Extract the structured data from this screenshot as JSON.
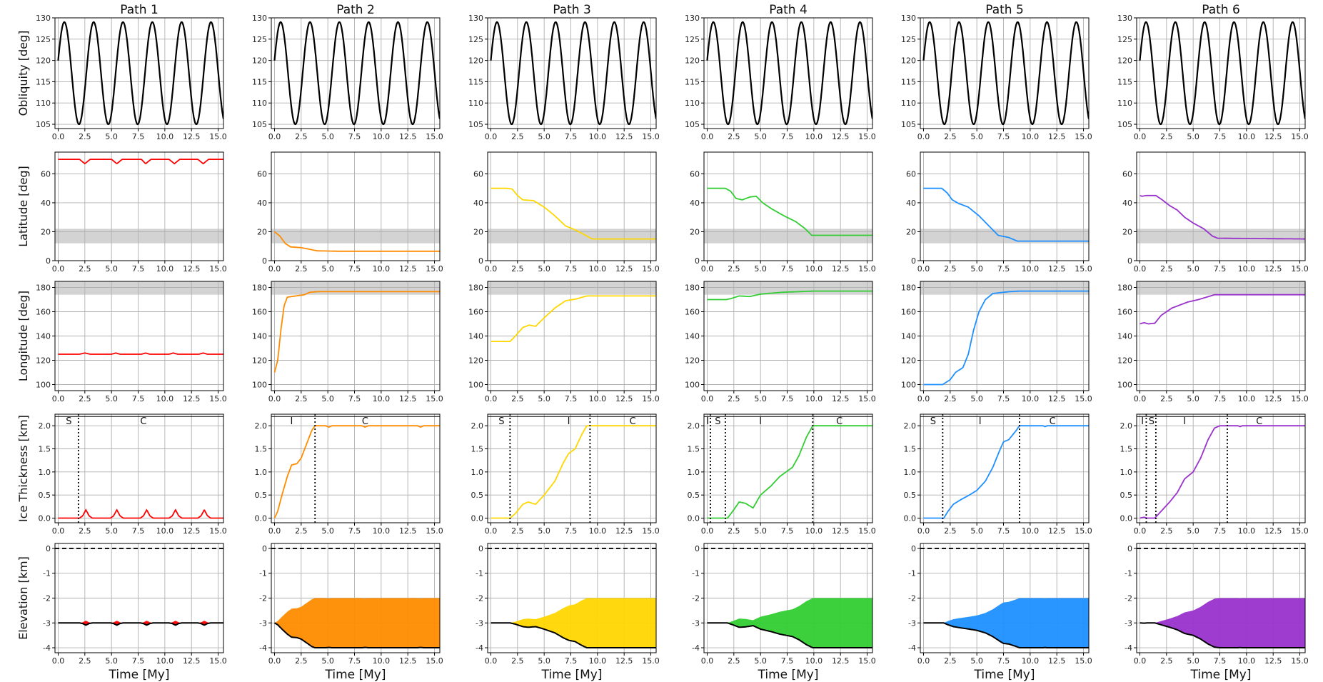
{
  "chart_data": {
    "type": "line",
    "title": "",
    "paths": [
      {
        "name": "Path 1",
        "color": "#ff0000",
        "fill": "#ff0000",
        "lat": [
          [
            0,
            70
          ],
          [
            1.5,
            70
          ],
          [
            2,
            70
          ],
          [
            2.5,
            67
          ],
          [
            3,
            70
          ],
          [
            5,
            70
          ],
          [
            5.5,
            67
          ],
          [
            6,
            70
          ],
          [
            7.8,
            70
          ],
          [
            8.2,
            67
          ],
          [
            8.7,
            70
          ],
          [
            10.4,
            70
          ],
          [
            10.9,
            67
          ],
          [
            11.4,
            70
          ],
          [
            13.1,
            70
          ],
          [
            13.6,
            67
          ],
          [
            14.1,
            70
          ],
          [
            15.5,
            70
          ]
        ],
        "lon": [
          [
            0,
            125
          ],
          [
            2,
            125
          ],
          [
            2.5,
            126
          ],
          [
            3,
            125
          ],
          [
            5,
            125
          ],
          [
            5.4,
            126
          ],
          [
            5.8,
            125
          ],
          [
            7.8,
            125
          ],
          [
            8.2,
            126
          ],
          [
            8.6,
            125
          ],
          [
            10.4,
            125
          ],
          [
            10.8,
            126
          ],
          [
            11.2,
            125
          ],
          [
            13.2,
            125
          ],
          [
            13.6,
            126
          ],
          [
            14,
            125
          ],
          [
            15.5,
            125
          ]
        ],
        "ice": [
          [
            0,
            0
          ],
          [
            2,
            0
          ],
          [
            2.3,
            0.05
          ],
          [
            2.6,
            0.18
          ],
          [
            2.9,
            0.05
          ],
          [
            3.2,
            0
          ],
          [
            4.9,
            0
          ],
          [
            5.2,
            0.05
          ],
          [
            5.5,
            0.18
          ],
          [
            5.8,
            0.05
          ],
          [
            6.1,
            0
          ],
          [
            7.7,
            0
          ],
          [
            8,
            0.05
          ],
          [
            8.3,
            0.18
          ],
          [
            8.6,
            0.05
          ],
          [
            8.9,
            0
          ],
          [
            10.4,
            0
          ],
          [
            10.7,
            0.05
          ],
          [
            11,
            0.18
          ],
          [
            11.3,
            0.05
          ],
          [
            11.6,
            0
          ],
          [
            13.1,
            0
          ],
          [
            13.4,
            0.05
          ],
          [
            13.7,
            0.18
          ],
          [
            14,
            0.05
          ],
          [
            14.3,
            0
          ],
          [
            15.5,
            0
          ]
        ],
        "phase_lines": [
          1.9
        ],
        "phase_labels": [
          {
            "t": "S",
            "x": 1.0
          },
          {
            "t": "C",
            "x": 8.0
          }
        ]
      },
      {
        "name": "Path 2",
        "color": "#ff8c00",
        "fill": "#ff8c00",
        "lat": [
          [
            0,
            20
          ],
          [
            0.5,
            17
          ],
          [
            1,
            12
          ],
          [
            1.5,
            9.5
          ],
          [
            2.5,
            9
          ],
          [
            3.2,
            8
          ],
          [
            4,
            6.8
          ],
          [
            6,
            6.5
          ],
          [
            15.5,
            6.5
          ]
        ],
        "lon": [
          [
            0,
            110
          ],
          [
            0.3,
            120
          ],
          [
            0.6,
            145
          ],
          [
            0.9,
            165
          ],
          [
            1.2,
            172
          ],
          [
            2,
            173
          ],
          [
            2.8,
            174
          ],
          [
            3.3,
            176
          ],
          [
            4,
            176.5
          ],
          [
            15.5,
            176.5
          ]
        ],
        "ice": [
          [
            0,
            0
          ],
          [
            0.3,
            0.15
          ],
          [
            0.7,
            0.5
          ],
          [
            1.2,
            0.9
          ],
          [
            1.6,
            1.15
          ],
          [
            2.1,
            1.18
          ],
          [
            2.5,
            1.3
          ],
          [
            3,
            1.6
          ],
          [
            3.5,
            1.9
          ],
          [
            3.8,
            2
          ],
          [
            4.8,
            2
          ],
          [
            5.1,
            1.97
          ],
          [
            5.4,
            2
          ],
          [
            8.2,
            2
          ],
          [
            8.5,
            1.97
          ],
          [
            8.8,
            2
          ],
          [
            13.4,
            2
          ],
          [
            13.7,
            1.97
          ],
          [
            14,
            2
          ],
          [
            15.5,
            2
          ]
        ],
        "phase_lines": [
          3.8
        ],
        "phase_labels": [
          {
            "t": "I",
            "x": 1.6
          },
          {
            "t": "C",
            "x": 8.5
          }
        ]
      },
      {
        "name": "Path 3",
        "color": "#ffd700",
        "fill": "#ffd700",
        "lat": [
          [
            0,
            50
          ],
          [
            1.5,
            50
          ],
          [
            2,
            49.5
          ],
          [
            2.5,
            45
          ],
          [
            3,
            42
          ],
          [
            4,
            41.5
          ],
          [
            5,
            37
          ],
          [
            6,
            31
          ],
          [
            7,
            24
          ],
          [
            8,
            21
          ],
          [
            9,
            17
          ],
          [
            9.5,
            15
          ],
          [
            15.5,
            15
          ]
        ],
        "lon": [
          [
            0,
            135.5
          ],
          [
            1.8,
            135.5
          ],
          [
            2.3,
            140
          ],
          [
            3,
            147
          ],
          [
            3.6,
            149
          ],
          [
            4.2,
            148
          ],
          [
            5,
            155
          ],
          [
            6,
            163
          ],
          [
            7,
            169
          ],
          [
            8,
            170.5
          ],
          [
            9,
            173
          ],
          [
            15.5,
            173
          ]
        ],
        "ice": [
          [
            0,
            0
          ],
          [
            1.8,
            0
          ],
          [
            2.3,
            0.1
          ],
          [
            3,
            0.3
          ],
          [
            3.5,
            0.35
          ],
          [
            4.2,
            0.3
          ],
          [
            5,
            0.5
          ],
          [
            6,
            0.8
          ],
          [
            6.8,
            1.2
          ],
          [
            7.3,
            1.4
          ],
          [
            7.9,
            1.5
          ],
          [
            8.5,
            1.8
          ],
          [
            9,
            2
          ],
          [
            15.5,
            2
          ]
        ],
        "phase_lines": [
          1.8,
          9.3
        ],
        "phase_labels": [
          {
            "t": "S",
            "x": 1.0
          },
          {
            "t": "I",
            "x": 7.3
          },
          {
            "t": "C",
            "x": 13.3
          }
        ]
      },
      {
        "name": "Path 4",
        "color": "#32cd32",
        "fill": "#32cd32",
        "lat": [
          [
            0,
            50
          ],
          [
            1.7,
            50
          ],
          [
            2.2,
            48
          ],
          [
            2.7,
            43
          ],
          [
            3.3,
            42
          ],
          [
            4,
            44
          ],
          [
            4.6,
            44.5
          ],
          [
            5.2,
            40
          ],
          [
            6,
            36
          ],
          [
            7.2,
            31
          ],
          [
            8.3,
            27
          ],
          [
            9.2,
            22
          ],
          [
            9.8,
            17.5
          ],
          [
            15.5,
            17.5
          ]
        ],
        "lon": [
          [
            0,
            170
          ],
          [
            1.8,
            170
          ],
          [
            2.3,
            171
          ],
          [
            3,
            173
          ],
          [
            4,
            172.5
          ],
          [
            5,
            174.5
          ],
          [
            7,
            176
          ],
          [
            10,
            177
          ],
          [
            15.5,
            177
          ]
        ],
        "ice": [
          [
            0,
            0
          ],
          [
            1.9,
            0
          ],
          [
            2.4,
            0.15
          ],
          [
            3,
            0.35
          ],
          [
            3.6,
            0.32
          ],
          [
            4.3,
            0.22
          ],
          [
            5,
            0.5
          ],
          [
            6,
            0.7
          ],
          [
            6.8,
            0.9
          ],
          [
            7.4,
            1
          ],
          [
            8,
            1.1
          ],
          [
            8.6,
            1.35
          ],
          [
            9.3,
            1.75
          ],
          [
            9.9,
            2
          ],
          [
            15.5,
            2
          ]
        ],
        "phase_lines": [
          0.3,
          1.7,
          9.9
        ],
        "phase_labels": [
          {
            "t": "I",
            "x": 0.05
          },
          {
            "t": "S",
            "x": 1.0
          },
          {
            "t": "I",
            "x": 5.0
          },
          {
            "t": "C",
            "x": 12.4
          }
        ]
      },
      {
        "name": "Path 5",
        "color": "#1e90ff",
        "fill": "#1e90ff",
        "lat": [
          [
            0,
            50
          ],
          [
            1.7,
            50
          ],
          [
            2.2,
            47
          ],
          [
            2.7,
            42
          ],
          [
            3.3,
            39.5
          ],
          [
            4.2,
            37
          ],
          [
            5.2,
            31
          ],
          [
            6,
            25
          ],
          [
            7,
            17.5
          ],
          [
            8,
            16
          ],
          [
            8.8,
            13.5
          ],
          [
            15.5,
            13.5
          ]
        ],
        "lon": [
          [
            0,
            100
          ],
          [
            1.8,
            100
          ],
          [
            2.5,
            104
          ],
          [
            3,
            110
          ],
          [
            3.7,
            114
          ],
          [
            4.2,
            125
          ],
          [
            4.7,
            145
          ],
          [
            5.2,
            160
          ],
          [
            5.8,
            170
          ],
          [
            6.5,
            175
          ],
          [
            8,
            176.5
          ],
          [
            9,
            177
          ],
          [
            15.5,
            177
          ]
        ],
        "ice": [
          [
            0,
            0
          ],
          [
            1.9,
            0
          ],
          [
            2.3,
            0.15
          ],
          [
            2.8,
            0.3
          ],
          [
            3.5,
            0.4
          ],
          [
            4.3,
            0.5
          ],
          [
            5,
            0.6
          ],
          [
            5.8,
            0.8
          ],
          [
            6.5,
            1.1
          ],
          [
            7.2,
            1.5
          ],
          [
            7.5,
            1.65
          ],
          [
            8,
            1.7
          ],
          [
            8.7,
            1.9
          ],
          [
            9,
            2
          ],
          [
            11.2,
            2
          ],
          [
            11.4,
            1.98
          ],
          [
            11.6,
            2
          ],
          [
            15.5,
            2
          ]
        ],
        "phase_lines": [
          1.8,
          9.0
        ],
        "phase_labels": [
          {
            "t": "S",
            "x": 0.9
          },
          {
            "t": "I",
            "x": 5.3
          },
          {
            "t": "C",
            "x": 12.1
          }
        ]
      },
      {
        "name": "Path 6",
        "color": "#9932cc",
        "fill": "#9932cc",
        "lat": [
          [
            0,
            45
          ],
          [
            0.2,
            44.5
          ],
          [
            0.6,
            45
          ],
          [
            1.5,
            45
          ],
          [
            2.1,
            42
          ],
          [
            2.8,
            38
          ],
          [
            3.5,
            35
          ],
          [
            4.2,
            30
          ],
          [
            5,
            26
          ],
          [
            6,
            22
          ],
          [
            6.8,
            17
          ],
          [
            7.3,
            15.5
          ],
          [
            15.5,
            15
          ]
        ],
        "lon": [
          [
            0,
            150
          ],
          [
            0.4,
            151
          ],
          [
            0.8,
            150
          ],
          [
            1.4,
            150.5
          ],
          [
            2,
            157
          ],
          [
            3,
            163
          ],
          [
            4.5,
            168
          ],
          [
            5.5,
            170
          ],
          [
            7,
            174
          ],
          [
            15.5,
            174
          ]
        ],
        "ice": [
          [
            0,
            0
          ],
          [
            0.4,
            0.02
          ],
          [
            0.7,
            0
          ],
          [
            1.4,
            0
          ],
          [
            2,
            0.15
          ],
          [
            2.8,
            0.35
          ],
          [
            3.5,
            0.55
          ],
          [
            4.2,
            0.85
          ],
          [
            5,
            1
          ],
          [
            5.7,
            1.3
          ],
          [
            6.4,
            1.7
          ],
          [
            7,
            1.95
          ],
          [
            7.5,
            2
          ],
          [
            9.2,
            2
          ],
          [
            9.4,
            1.98
          ],
          [
            9.6,
            2
          ],
          [
            15.5,
            2
          ]
        ],
        "phase_lines": [
          0.6,
          1.5,
          8.2
        ],
        "phase_labels": [
          {
            "t": "I",
            "x": 0.25
          },
          {
            "t": "S",
            "x": 1.1
          },
          {
            "t": "I",
            "x": 4.2
          },
          {
            "t": "C",
            "x": 11.2
          }
        ]
      }
    ],
    "obliquity": {
      "mean": 117,
      "amplitude": 12,
      "period": 2.75,
      "color": "#000000"
    },
    "rows": [
      {
        "key": "obliquity",
        "ylabel": "Obliquity [deg]",
        "ylim": [
          104,
          130
        ],
        "yticks": [
          105,
          110,
          115,
          120,
          125,
          130
        ]
      },
      {
        "key": "lat",
        "ylabel": "Latitude [deg]",
        "ylim": [
          0,
          75
        ],
        "yticks": [
          0,
          20,
          40,
          60
        ],
        "band": [
          12,
          22
        ]
      },
      {
        "key": "lon",
        "ylabel": "Longitude [deg]",
        "ylim": [
          95,
          185
        ],
        "yticks": [
          100,
          120,
          140,
          160,
          180
        ],
        "band": [
          174,
          185
        ]
      },
      {
        "key": "ice",
        "ylabel": "Ice Thickness [km]",
        "ylim": [
          -0.1,
          2.25
        ],
        "yticks": [
          0.0,
          0.5,
          1.0,
          1.5,
          2.0
        ]
      },
      {
        "key": "elev",
        "ylabel": "Elevation [km]",
        "ylim": [
          -4.2,
          0.2
        ],
        "yticks": [
          0,
          -1,
          -2,
          -3,
          -4
        ]
      }
    ],
    "xlim": [
      -0.3,
      15.5
    ],
    "xticks": [
      0.0,
      2.5,
      5.0,
      7.5,
      10.0,
      12.5,
      15.0
    ],
    "xlabel": "Time [My]",
    "band_color": "#d3d3d3",
    "grid": true
  }
}
